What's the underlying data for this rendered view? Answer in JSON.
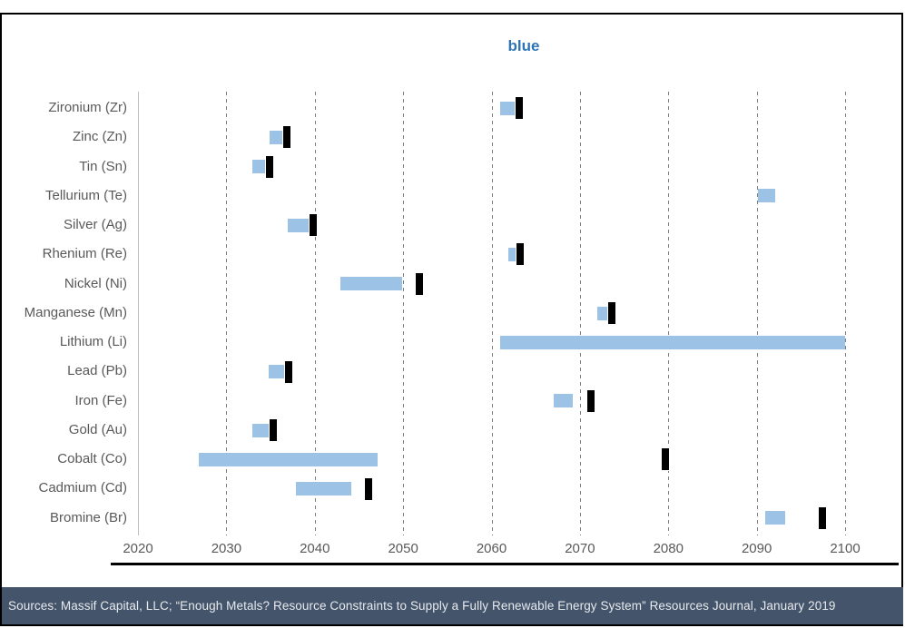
{
  "title": "blue",
  "colors": {
    "title": "#2E74B5",
    "axis_text": "#595959",
    "gridline": "#7F7F7F",
    "axis_line": "#BFBFBF",
    "bar_fill": "#9CC2E5",
    "marker_fill": "#000000",
    "frame_border": "#000000",
    "footer_bg": "#44546A",
    "footer_text": "#E7EAEE"
  },
  "footer": {
    "text": "Sources: Massif Capital, LLC; “Enough Metals? Resource Constraints to Supply a Fully Renewable Energy System” Resources Journal, January 2019"
  },
  "chart_data": {
    "type": "bar",
    "subtype": "horizontal-floating-range-with-marker",
    "title": "blue",
    "xlabel": "",
    "ylabel": "",
    "xlim": [
      2020,
      2100
    ],
    "x_ticks": [
      2020,
      2030,
      2040,
      2050,
      2060,
      2070,
      2080,
      2090,
      2100
    ],
    "grid": "vertical-dashed",
    "legend": "none",
    "series_description": "Light blue bar = estimated year range of resource constraint; black tick = point estimate marker",
    "rows": [
      {
        "label": "Zironium (Zr)",
        "range_start": 2061.0,
        "range_end": 2062.9,
        "marker": 2063.1
      },
      {
        "label": "Zinc (Zn)",
        "range_start": 2034.9,
        "range_end": 2036.7,
        "marker": 2036.8
      },
      {
        "label": "Tin (Sn)",
        "range_start": 2032.9,
        "range_end": 2034.9,
        "marker": 2034.9
      },
      {
        "label": "Tellurium (Te)",
        "range_start": 2090.1,
        "range_end": 2092.1,
        "marker": null
      },
      {
        "label": "Silver (Ag)",
        "range_start": 2036.9,
        "range_end": 2040.0,
        "marker": 2039.8
      },
      {
        "label": "Rhenium (Re)",
        "range_start": 2061.9,
        "range_end": 2062.7,
        "marker": 2063.2
      },
      {
        "label": "Nickel (Ni)",
        "range_start": 2042.9,
        "range_end": 2049.9,
        "marker": 2051.8
      },
      {
        "label": "Manganese (Mn)",
        "range_start": 2072.0,
        "range_end": 2073.2,
        "marker": 2073.6
      },
      {
        "label": "Lithium (Li)",
        "range_start": 2061.0,
        "range_end": 2100.0,
        "marker": null
      },
      {
        "label": "Lead (Pb)",
        "range_start": 2034.8,
        "range_end": 2036.5,
        "marker": 2037.0
      },
      {
        "label": "Iron (Fe)",
        "range_start": 2067.0,
        "range_end": 2069.2,
        "marker": 2071.2
      },
      {
        "label": "Gold (Au)",
        "range_start": 2032.9,
        "range_end": 2034.9,
        "marker": 2035.3
      },
      {
        "label": "Cobalt (Co)",
        "range_start": 2026.9,
        "range_end": 2047.1,
        "marker": 2079.7
      },
      {
        "label": "Cadmium (Cd)",
        "range_start": 2037.9,
        "range_end": 2044.1,
        "marker": 2046.1
      },
      {
        "label": "Bromine (Br)",
        "range_start": 2091.0,
        "range_end": 2093.2,
        "marker": 2097.4
      }
    ]
  }
}
